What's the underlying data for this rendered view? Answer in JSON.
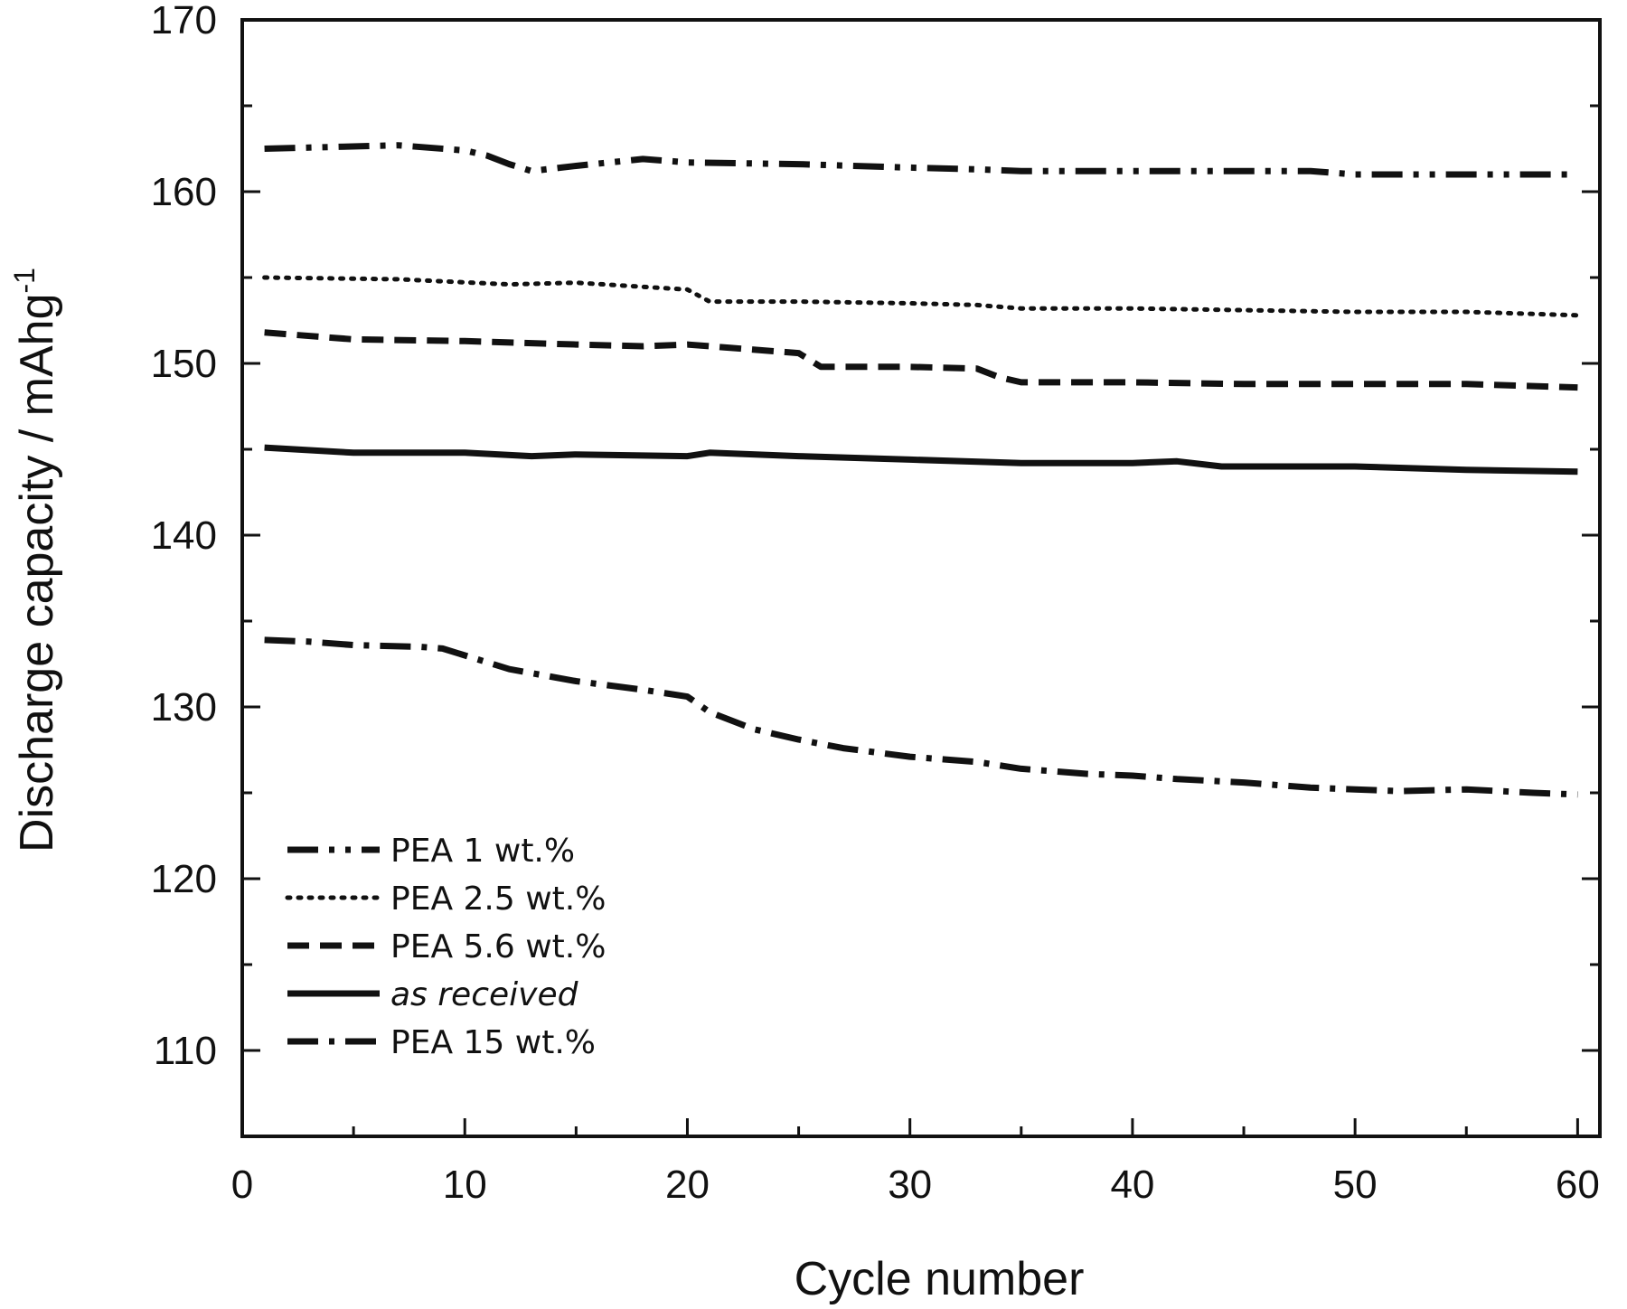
{
  "chart_data": {
    "type": "line",
    "xlabel": "Cycle number",
    "ylabel": "Discharge capacity / mAhg",
    "ylabel_superscript": "-1",
    "xlim": [
      0,
      61
    ],
    "ylim": [
      105,
      170
    ],
    "xticks": [
      0,
      10,
      20,
      30,
      40,
      50,
      60
    ],
    "yticks": [
      110,
      120,
      130,
      140,
      150,
      160,
      170
    ],
    "grid": false,
    "legend_position": "bottom-left",
    "series": [
      {
        "name": "PEA 1 wt.%",
        "style": "dash-dot-dot",
        "italic": false,
        "x": [
          1,
          4,
          7,
          10,
          11,
          12,
          13,
          15,
          18,
          20,
          25,
          30,
          33,
          35,
          40,
          45,
          48,
          50,
          55,
          60
        ],
        "y": [
          162.5,
          162.6,
          162.7,
          162.4,
          162.1,
          161.6,
          161.2,
          161.5,
          161.9,
          161.7,
          161.6,
          161.4,
          161.3,
          161.2,
          161.2,
          161.2,
          161.2,
          161.0,
          161.0,
          161.0
        ]
      },
      {
        "name": "PEA 2.5 wt.%",
        "style": "dotted",
        "italic": false,
        "x": [
          1,
          7,
          12,
          15,
          20,
          21,
          25,
          30,
          33,
          35,
          40,
          45,
          50,
          55,
          60
        ],
        "y": [
          155.0,
          154.9,
          154.6,
          154.7,
          154.3,
          153.6,
          153.6,
          153.5,
          153.4,
          153.2,
          153.2,
          153.1,
          153.0,
          153.0,
          152.8
        ]
      },
      {
        "name": "PEA 5.6 wt.%",
        "style": "dashed",
        "italic": false,
        "x": [
          1,
          5,
          10,
          15,
          18,
          20,
          25,
          26,
          30,
          33,
          34,
          35,
          40,
          45,
          50,
          55,
          60
        ],
        "y": [
          151.8,
          151.4,
          151.3,
          151.1,
          151.0,
          151.1,
          150.6,
          149.8,
          149.8,
          149.7,
          149.2,
          148.9,
          148.9,
          148.8,
          148.8,
          148.8,
          148.6
        ]
      },
      {
        "name": "as received",
        "style": "solid",
        "italic": true,
        "x": [
          1,
          5,
          10,
          13,
          15,
          20,
          21,
          25,
          30,
          35,
          40,
          42,
          44,
          50,
          55,
          60
        ],
        "y": [
          145.1,
          144.8,
          144.8,
          144.6,
          144.7,
          144.6,
          144.8,
          144.6,
          144.4,
          144.2,
          144.2,
          144.3,
          144.0,
          144.0,
          143.8,
          143.7
        ]
      },
      {
        "name": "PEA 15 wt.%",
        "style": "dash-dot",
        "italic": false,
        "x": [
          1,
          3,
          5,
          8,
          9,
          12,
          15,
          18,
          20,
          21,
          23,
          25,
          27,
          30,
          33,
          35,
          38,
          40,
          42,
          45,
          48,
          50,
          52,
          55,
          58,
          60
        ],
        "y": [
          133.9,
          133.8,
          133.6,
          133.5,
          133.4,
          132.2,
          131.5,
          131.0,
          130.6,
          129.7,
          128.7,
          128.1,
          127.6,
          127.1,
          126.8,
          126.4,
          126.1,
          126.0,
          125.8,
          125.6,
          125.3,
          125.2,
          125.1,
          125.2,
          125.0,
          124.9
        ]
      }
    ]
  }
}
